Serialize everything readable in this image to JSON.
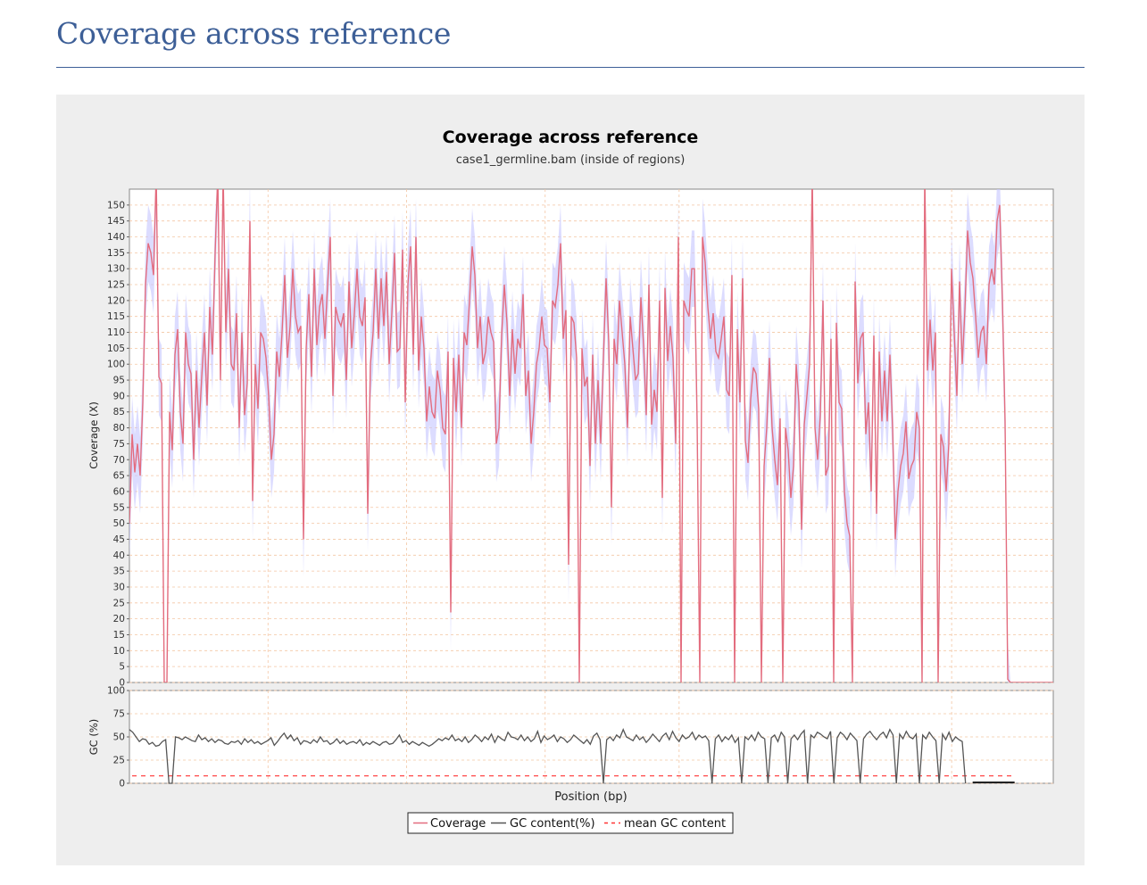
{
  "page": {
    "heading": "Coverage across reference"
  },
  "colors": {
    "heading": "#3d5f97",
    "coverage_line": "#e36c7e",
    "coverage_band": "#c9c9ff",
    "gc_line": "#555555",
    "mean_gc": "#ff3333",
    "grid": "#f3c6a3",
    "figure_bg": "#eeeeee"
  },
  "chart_data": {
    "type": "line",
    "title": "Coverage across reference",
    "subtitle": "case1_germline.bam (inside of regions)",
    "xlabel": "Position (bp)",
    "x_tick_labels_visible": false,
    "legend_position": "bottom-center",
    "legend": [
      {
        "name": "Coverage",
        "style": "solid",
        "color": "#e36c7e"
      },
      {
        "name": "GC content(%)",
        "style": "solid",
        "color": "#555555"
      },
      {
        "name": "mean GC content",
        "style": "dashed",
        "color": "#ff3333"
      }
    ],
    "coverage_panel": {
      "ylabel": "Coverage (X)",
      "ylim": [
        0,
        155
      ],
      "yticks": [
        0,
        5,
        10,
        15,
        20,
        25,
        30,
        35,
        40,
        45,
        50,
        55,
        60,
        65,
        70,
        75,
        80,
        85,
        90,
        95,
        100,
        105,
        110,
        115,
        120,
        125,
        130,
        135,
        140,
        145,
        150
      ],
      "grid": true,
      "series": [
        {
          "name": "Coverage",
          "values": [
            50,
            78,
            66,
            75,
            65,
            88,
            125,
            138,
            135,
            128,
            160,
            96,
            94,
            0,
            0,
            85,
            73,
            103,
            111,
            85,
            75,
            110,
            100,
            97,
            70,
            98,
            80,
            96,
            110,
            87,
            118,
            103,
            135,
            160,
            95,
            160,
            110,
            130,
            100,
            98,
            116,
            80,
            110,
            84,
            94,
            145,
            57,
            100,
            86,
            110,
            108,
            102,
            90,
            70,
            78,
            104,
            96,
            110,
            128,
            102,
            112,
            130,
            115,
            110,
            112,
            45,
            105,
            122,
            96,
            130,
            106,
            118,
            122,
            108,
            125,
            140,
            90,
            118,
            114,
            112,
            116,
            95,
            126,
            105,
            116,
            130,
            115,
            112,
            121,
            53,
            100,
            110,
            130,
            108,
            127,
            112,
            129,
            100,
            116,
            135,
            104,
            105,
            136,
            88,
            125,
            137,
            103,
            140,
            98,
            115,
            105,
            82,
            93,
            85,
            83,
            98,
            92,
            80,
            78,
            104,
            22,
            102,
            85,
            103,
            80,
            110,
            106,
            120,
            137,
            128,
            105,
            115,
            100,
            104,
            115,
            110,
            107,
            75,
            80,
            109,
            125,
            113,
            90,
            111,
            97,
            108,
            105,
            122,
            90,
            98,
            75,
            85,
            100,
            105,
            115,
            106,
            105,
            88,
            120,
            118,
            125,
            138,
            108,
            117,
            37,
            115,
            113,
            102,
            0,
            105,
            93,
            96,
            68,
            103,
            75,
            95,
            75,
            102,
            127,
            107,
            55,
            108,
            100,
            120,
            110,
            100,
            80,
            115,
            105,
            95,
            97,
            121,
            106,
            84,
            125,
            81,
            92,
            85,
            120,
            58,
            124,
            101,
            112,
            102,
            75,
            140,
            0,
            120,
            117,
            115,
            130,
            130,
            82,
            0,
            140,
            132,
            118,
            108,
            116,
            104,
            102,
            108,
            115,
            92,
            90,
            128,
            0,
            111,
            88,
            127,
            76,
            69,
            89,
            99,
            97,
            86,
            0,
            68,
            80,
            102,
            80,
            70,
            62,
            83,
            0,
            80,
            73,
            58,
            68,
            100,
            88,
            48,
            81,
            90,
            100,
            160,
            80,
            70,
            84,
            120,
            65,
            68,
            108,
            0,
            113,
            88,
            86,
            60,
            50,
            46,
            0,
            126,
            94,
            108,
            110,
            78,
            88,
            60,
            109,
            53,
            104,
            82,
            98,
            82,
            103,
            80,
            45,
            60,
            68,
            72,
            82,
            64,
            68,
            70,
            85,
            80,
            0,
            160,
            98,
            114,
            98,
            110,
            0,
            78,
            74,
            60,
            75,
            130,
            110,
            90,
            126,
            100,
            117,
            142,
            132,
            127,
            115,
            102,
            110,
            112,
            100,
            125,
            130,
            125,
            145,
            150,
            120,
            82,
            1,
            0,
            0,
            0,
            0,
            0,
            0,
            0,
            0,
            0,
            0,
            0,
            0,
            0,
            0,
            0,
            0,
            0
          ]
        },
        {
          "name": "Coverage band",
          "role": "confidence band",
          "spread": 12
        }
      ]
    },
    "gc_panel": {
      "ylabel": "GC (%)",
      "ylim": [
        0,
        100
      ],
      "yticks": [
        0,
        25,
        50,
        75,
        100
      ],
      "mean_gc_content": 8,
      "series": [
        {
          "name": "GC content(%)",
          "values": [
            58,
            55,
            50,
            45,
            48,
            47,
            42,
            44,
            40,
            41,
            45,
            47,
            0,
            0,
            50,
            49,
            47,
            50,
            48,
            46,
            45,
            52,
            47,
            49,
            45,
            48,
            44,
            47,
            46,
            43,
            42,
            45,
            44,
            46,
            42,
            48,
            44,
            47,
            43,
            45,
            42,
            44,
            46,
            49,
            41,
            45,
            50,
            54,
            48,
            52,
            46,
            49,
            42,
            46,
            45,
            43,
            47,
            44,
            50,
            45,
            46,
            42,
            44,
            48,
            43,
            46,
            42,
            44,
            45,
            43,
            47,
            41,
            44,
            42,
            45,
            43,
            41,
            44,
            45,
            42,
            43,
            47,
            52,
            44,
            46,
            42,
            45,
            43,
            41,
            44,
            42,
            40,
            42,
            45,
            48,
            46,
            49,
            47,
            52,
            46,
            48,
            45,
            50,
            44,
            47,
            52,
            49,
            45,
            50,
            47,
            53,
            44,
            51,
            48,
            46,
            55,
            50,
            49,
            47,
            52,
            46,
            50,
            45,
            48,
            56,
            44,
            51,
            47,
            49,
            52,
            45,
            50,
            48,
            44,
            47,
            52,
            49,
            46,
            43,
            47,
            42,
            51,
            54,
            47,
            0,
            47,
            50,
            46,
            52,
            49,
            58,
            50,
            48,
            46,
            52,
            47,
            50,
            44,
            48,
            53,
            49,
            45,
            51,
            54,
            47,
            56,
            49,
            45,
            52,
            48,
            50,
            55,
            47,
            52,
            49,
            51,
            46,
            0,
            48,
            52,
            45,
            50,
            47,
            52,
            44,
            49,
            0,
            50,
            47,
            52,
            46,
            55,
            50,
            48,
            0,
            49,
            52,
            45,
            55,
            50,
            0,
            48,
            52,
            47,
            53,
            57,
            0,
            52,
            49,
            55,
            53,
            50,
            48,
            56,
            0,
            49,
            55,
            52,
            47,
            54,
            50,
            46,
            0,
            48,
            53,
            56,
            51,
            47,
            52,
            55,
            49,
            58,
            52,
            0,
            53,
            48,
            56,
            50,
            48,
            53,
            0,
            52,
            48,
            55,
            50,
            46,
            0,
            53,
            47,
            55,
            45,
            50,
            47,
            45,
            0,
            0,
            0,
            0,
            0,
            0,
            0,
            0,
            0,
            0,
            0,
            0,
            0,
            0,
            0,
            0,
            0,
            0,
            0,
            0,
            0,
            0,
            0,
            0,
            0,
            0,
            0,
            0,
            0,
            0,
            0,
            0,
            0,
            0,
            0,
            0,
            0,
            0,
            0,
            0,
            0,
            0,
            0,
            0,
            0,
            0,
            0,
            0,
            0,
            0,
            0,
            0,
            0,
            0,
            0,
            0,
            0,
            0,
            0,
            0,
            0,
            0,
            0,
            0,
            0,
            0,
            0,
            0,
            0,
            0,
            0,
            0,
            0,
            0,
            0,
            0,
            0,
            0,
            0,
            0,
            0,
            0,
            0,
            0,
            0
          ]
        }
      ]
    }
  }
}
